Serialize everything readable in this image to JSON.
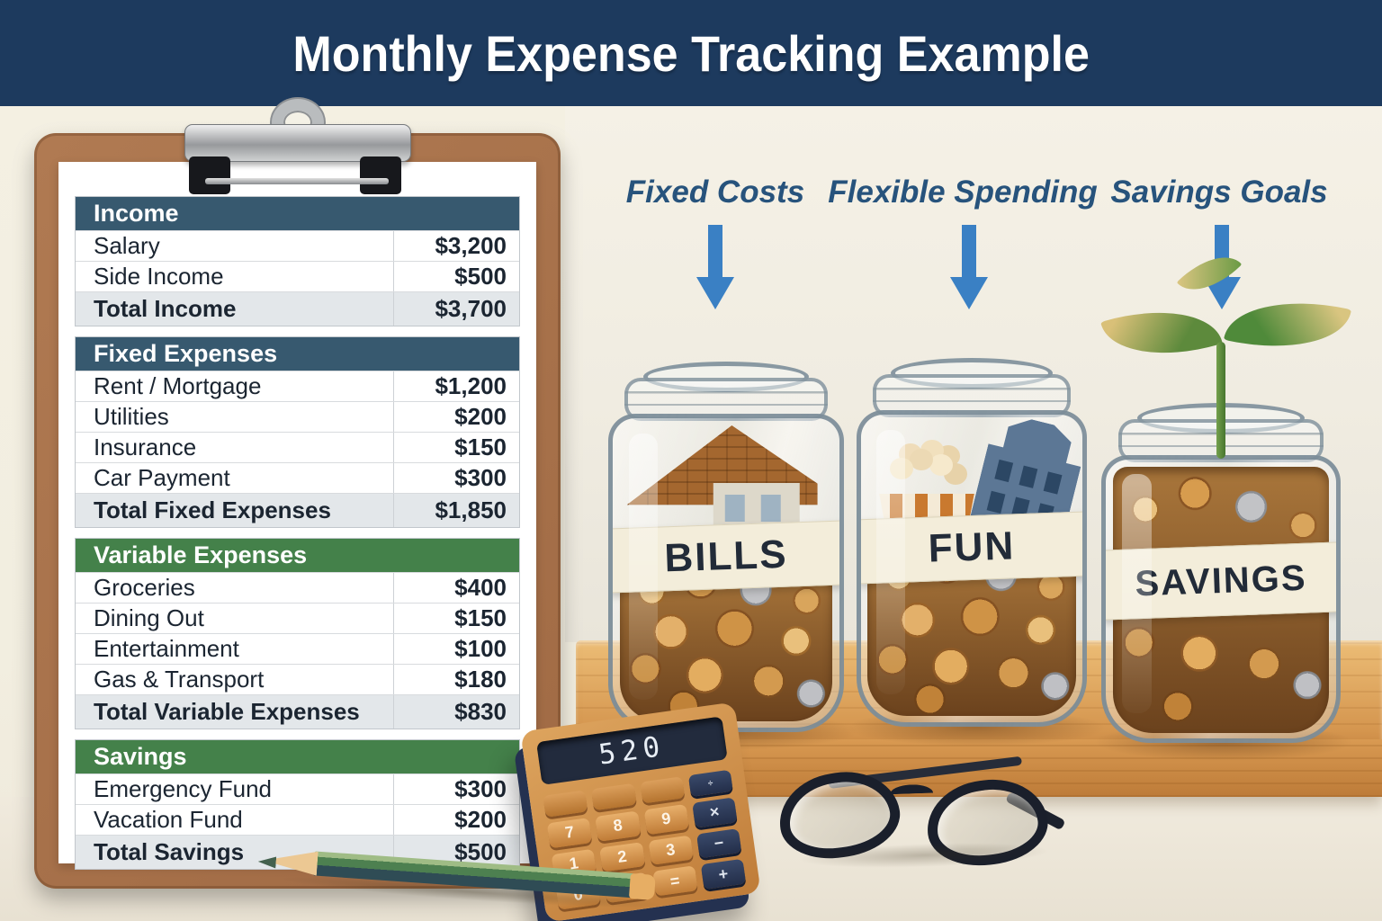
{
  "title": "Monthly Expense Tracking Example",
  "colors": {
    "banner_navy": "#1d3a5e",
    "section_header_blue": "#37596f",
    "section_header_green": "#44814a",
    "total_row_gray": "#e3e7ea",
    "arrow_blue": "#3a80c4",
    "caption_blue": "#27537c"
  },
  "budget": {
    "sections": [
      {
        "header": "Income",
        "rows": [
          {
            "label": "Salary",
            "amount": "$3,200"
          },
          {
            "label": "Side Income",
            "amount": "$500"
          }
        ],
        "total": {
          "label": "Total Income",
          "amount": "$3,700"
        }
      },
      {
        "header": "Fixed Expenses",
        "rows": [
          {
            "label": "Rent / Mortgage",
            "amount": "$1,200"
          },
          {
            "label": "Utilities",
            "amount": "$200"
          },
          {
            "label": "Insurance",
            "amount": "$150"
          },
          {
            "label": "Car Payment",
            "amount": "$300"
          }
        ],
        "total": {
          "label": "Total Fixed Expenses",
          "amount": "$1,850"
        }
      },
      {
        "header": "Variable Expenses",
        "rows": [
          {
            "label": "Groceries",
            "amount": "$400"
          },
          {
            "label": "Dining Out",
            "amount": "$150"
          },
          {
            "label": "Entertainment",
            "amount": "$100"
          },
          {
            "label": "Gas & Transport",
            "amount": "$180"
          }
        ],
        "total": {
          "label": "Total Variable Expenses",
          "amount": "$830"
        }
      },
      {
        "header": "Savings",
        "rows": [
          {
            "label": "Emergency Fund",
            "amount": "$300"
          },
          {
            "label": "Vacation Fund",
            "amount": "$200"
          }
        ],
        "total": {
          "label": "Total Savings",
          "amount": "$500"
        }
      }
    ]
  },
  "jars": [
    {
      "caption": "Fixed Costs",
      "label": "BILLS"
    },
    {
      "caption": "Flexible Spending",
      "label": "FUN"
    },
    {
      "caption": "Savings Goals",
      "label": "SAVINGS"
    }
  ],
  "calculator": {
    "display": "520",
    "keypad": [
      "",
      "",
      "",
      "÷",
      "7",
      "8",
      "9",
      "×",
      "1",
      "2",
      "3",
      "−",
      "0",
      "·",
      "=",
      "+"
    ]
  }
}
